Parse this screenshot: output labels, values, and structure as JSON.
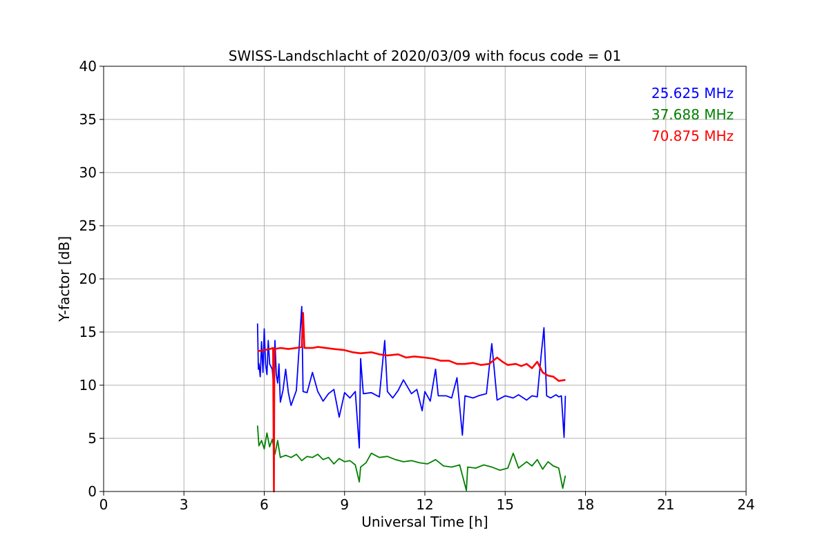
{
  "chart_data": {
    "type": "line",
    "title": "SWISS-Landschlacht of 2020/03/09 with focus code = 01",
    "xlabel": "Universal Time [h]",
    "ylabel": "Y-factor [dB]",
    "xlim": [
      0,
      24
    ],
    "ylim": [
      0,
      40
    ],
    "xticks": [
      0,
      3,
      6,
      9,
      12,
      15,
      18,
      21,
      24
    ],
    "yticks": [
      0,
      5,
      10,
      15,
      20,
      25,
      30,
      35,
      40
    ],
    "grid": true,
    "legend_position": "top-right",
    "series": [
      {
        "name": "25.625 MHz",
        "color": "#0000ff",
        "points": [
          [
            5.75,
            15.8
          ],
          [
            5.78,
            11.5
          ],
          [
            5.8,
            12.0
          ],
          [
            5.85,
            10.8
          ],
          [
            5.9,
            14.1
          ],
          [
            5.95,
            11.2
          ],
          [
            6.0,
            15.3
          ],
          [
            6.05,
            12.0
          ],
          [
            6.1,
            11.0
          ],
          [
            6.15,
            14.2
          ],
          [
            6.2,
            12.0
          ],
          [
            6.3,
            11.5
          ],
          [
            6.35,
            10.0
          ],
          [
            6.4,
            14.2
          ],
          [
            6.45,
            11.0
          ],
          [
            6.5,
            10.2
          ],
          [
            6.55,
            12.0
          ],
          [
            6.6,
            8.4
          ],
          [
            6.7,
            9.5
          ],
          [
            6.8,
            11.5
          ],
          [
            6.9,
            9.3
          ],
          [
            7.0,
            8.1
          ],
          [
            7.2,
            9.5
          ],
          [
            7.4,
            17.4
          ],
          [
            7.45,
            9.4
          ],
          [
            7.6,
            9.3
          ],
          [
            7.8,
            11.2
          ],
          [
            8.0,
            9.4
          ],
          [
            8.2,
            8.5
          ],
          [
            8.4,
            9.2
          ],
          [
            8.6,
            9.6
          ],
          [
            8.8,
            7.0
          ],
          [
            9.0,
            9.3
          ],
          [
            9.2,
            8.8
          ],
          [
            9.4,
            9.4
          ],
          [
            9.55,
            4.1
          ],
          [
            9.6,
            12.5
          ],
          [
            9.7,
            9.2
          ],
          [
            10.0,
            9.3
          ],
          [
            10.3,
            8.9
          ],
          [
            10.5,
            14.2
          ],
          [
            10.6,
            9.4
          ],
          [
            10.8,
            8.8
          ],
          [
            11.0,
            9.5
          ],
          [
            11.2,
            10.5
          ],
          [
            11.5,
            9.2
          ],
          [
            11.7,
            9.6
          ],
          [
            11.9,
            7.6
          ],
          [
            12.0,
            9.4
          ],
          [
            12.2,
            8.5
          ],
          [
            12.4,
            11.5
          ],
          [
            12.5,
            9.0
          ],
          [
            12.8,
            9.0
          ],
          [
            13.0,
            8.8
          ],
          [
            13.2,
            10.7
          ],
          [
            13.4,
            5.3
          ],
          [
            13.5,
            9.0
          ],
          [
            13.8,
            8.8
          ],
          [
            14.0,
            9.0
          ],
          [
            14.3,
            9.2
          ],
          [
            14.5,
            13.9
          ],
          [
            14.7,
            8.6
          ],
          [
            15.0,
            9.0
          ],
          [
            15.3,
            8.8
          ],
          [
            15.5,
            9.1
          ],
          [
            15.8,
            8.6
          ],
          [
            16.0,
            9.0
          ],
          [
            16.2,
            8.9
          ],
          [
            16.35,
            13.0
          ],
          [
            16.45,
            15.4
          ],
          [
            16.55,
            9.0
          ],
          [
            16.7,
            8.8
          ],
          [
            16.9,
            9.1
          ],
          [
            17.0,
            8.9
          ],
          [
            17.1,
            9.0
          ],
          [
            17.2,
            5.1
          ],
          [
            17.25,
            9.0
          ]
        ]
      },
      {
        "name": "37.688 MHz",
        "color": "#008000",
        "points": [
          [
            5.75,
            6.2
          ],
          [
            5.8,
            4.3
          ],
          [
            5.9,
            4.8
          ],
          [
            6.0,
            4.0
          ],
          [
            6.1,
            5.5
          ],
          [
            6.2,
            4.2
          ],
          [
            6.3,
            4.9
          ],
          [
            6.4,
            3.5
          ],
          [
            6.5,
            4.8
          ],
          [
            6.6,
            3.2
          ],
          [
            6.8,
            3.4
          ],
          [
            7.0,
            3.2
          ],
          [
            7.2,
            3.5
          ],
          [
            7.4,
            2.9
          ],
          [
            7.6,
            3.3
          ],
          [
            7.8,
            3.2
          ],
          [
            8.0,
            3.5
          ],
          [
            8.2,
            3.0
          ],
          [
            8.4,
            3.2
          ],
          [
            8.6,
            2.6
          ],
          [
            8.8,
            3.1
          ],
          [
            9.0,
            2.8
          ],
          [
            9.2,
            2.9
          ],
          [
            9.4,
            2.5
          ],
          [
            9.55,
            0.9
          ],
          [
            9.6,
            2.3
          ],
          [
            9.8,
            2.7
          ],
          [
            10.0,
            3.6
          ],
          [
            10.3,
            3.2
          ],
          [
            10.6,
            3.3
          ],
          [
            10.9,
            3.0
          ],
          [
            11.2,
            2.8
          ],
          [
            11.5,
            2.9
          ],
          [
            11.8,
            2.7
          ],
          [
            12.1,
            2.6
          ],
          [
            12.4,
            3.0
          ],
          [
            12.7,
            2.4
          ],
          [
            13.0,
            2.3
          ],
          [
            13.3,
            2.5
          ],
          [
            13.55,
            0.1
          ],
          [
            13.6,
            2.3
          ],
          [
            13.9,
            2.2
          ],
          [
            14.2,
            2.5
          ],
          [
            14.5,
            2.3
          ],
          [
            14.8,
            2.0
          ],
          [
            15.1,
            2.2
          ],
          [
            15.3,
            3.6
          ],
          [
            15.5,
            2.2
          ],
          [
            15.8,
            2.8
          ],
          [
            16.0,
            2.4
          ],
          [
            16.2,
            3.0
          ],
          [
            16.4,
            2.1
          ],
          [
            16.6,
            2.8
          ],
          [
            16.8,
            2.4
          ],
          [
            17.0,
            2.2
          ],
          [
            17.15,
            0.3
          ],
          [
            17.25,
            1.5
          ]
        ]
      },
      {
        "name": "70.875 MHz",
        "color": "#ff0000",
        "points": [
          [
            5.75,
            13.2
          ],
          [
            6.0,
            13.3
          ],
          [
            6.2,
            13.4
          ],
          [
            6.33,
            13.5
          ],
          [
            6.36,
            0.0
          ],
          [
            6.38,
            13.4
          ],
          [
            6.6,
            13.5
          ],
          [
            6.9,
            13.4
          ],
          [
            7.2,
            13.5
          ],
          [
            7.4,
            13.6
          ],
          [
            7.45,
            16.8
          ],
          [
            7.5,
            13.5
          ],
          [
            7.8,
            13.5
          ],
          [
            8.0,
            13.6
          ],
          [
            8.3,
            13.5
          ],
          [
            8.6,
            13.4
          ],
          [
            9.0,
            13.3
          ],
          [
            9.3,
            13.1
          ],
          [
            9.6,
            13.0
          ],
          [
            10.0,
            13.1
          ],
          [
            10.3,
            12.9
          ],
          [
            10.6,
            12.8
          ],
          [
            11.0,
            12.9
          ],
          [
            11.3,
            12.6
          ],
          [
            11.6,
            12.7
          ],
          [
            12.0,
            12.6
          ],
          [
            12.3,
            12.5
          ],
          [
            12.6,
            12.3
          ],
          [
            12.9,
            12.3
          ],
          [
            13.2,
            12.0
          ],
          [
            13.5,
            12.0
          ],
          [
            13.8,
            12.1
          ],
          [
            14.1,
            11.9
          ],
          [
            14.4,
            12.0
          ],
          [
            14.7,
            12.6
          ],
          [
            14.9,
            12.2
          ],
          [
            15.1,
            11.9
          ],
          [
            15.4,
            12.0
          ],
          [
            15.6,
            11.8
          ],
          [
            15.8,
            12.0
          ],
          [
            16.0,
            11.6
          ],
          [
            16.2,
            12.2
          ],
          [
            16.4,
            11.2
          ],
          [
            16.6,
            10.9
          ],
          [
            16.8,
            10.8
          ],
          [
            17.0,
            10.4
          ],
          [
            17.25,
            10.5
          ]
        ]
      }
    ]
  }
}
